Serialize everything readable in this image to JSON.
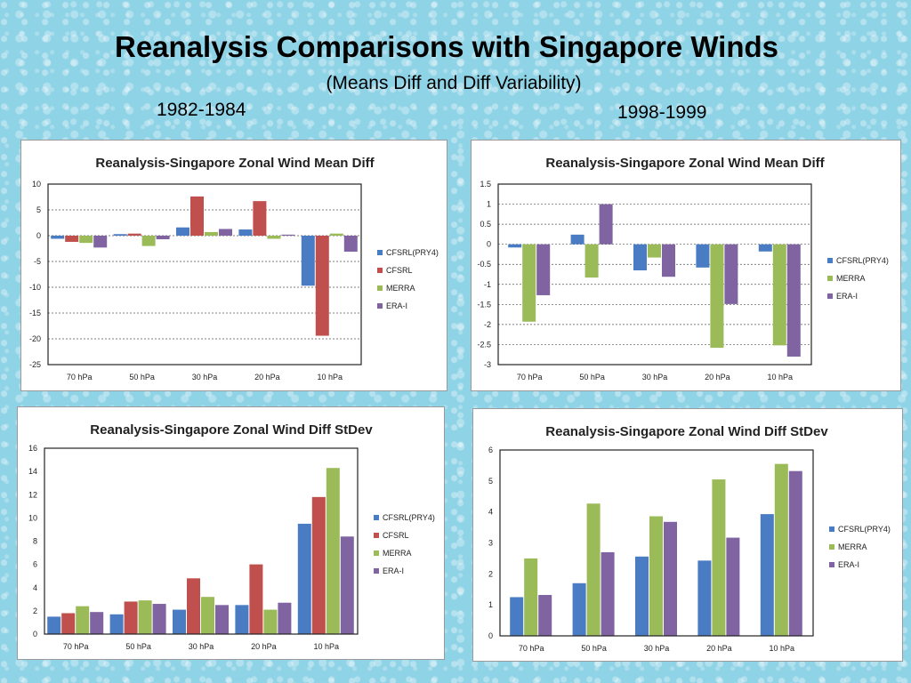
{
  "page": {
    "title": "Reanalysis Comparisons with Singapore Winds",
    "subtitle": "(Means Diff and Diff Variability)",
    "period_left": "1982-1984",
    "period_right": "1998-1999"
  },
  "colors": {
    "CFSRL(PRY4)": "#4a7cc4",
    "CFSRL": "#c0504d",
    "MERRA": "#9bbb59",
    "ERA-I": "#8064a2"
  },
  "chart_data": [
    {
      "type": "bar",
      "title": "Reanalysis-Singapore Zonal Wind Mean Diff",
      "categories": [
        "70 hPa",
        "50 hPa",
        "30 hPa",
        "20 hPa",
        "10 hPa"
      ],
      "ylim": [
        -25,
        10
      ],
      "yticks": [
        10,
        5,
        0,
        -5,
        -10,
        -15,
        -20,
        -25
      ],
      "grid": true,
      "legend_position": "right",
      "series": [
        {
          "name": "CFSRL(PRY4)",
          "values": [
            -0.6,
            0.3,
            1.6,
            1.2,
            -9.7
          ]
        },
        {
          "name": "CFSRL",
          "values": [
            -1.2,
            0.4,
            7.6,
            6.7,
            -19.4
          ]
        },
        {
          "name": "MERRA",
          "values": [
            -1.4,
            -2.0,
            0.7,
            -0.6,
            0.4
          ]
        },
        {
          "name": "ERA-I",
          "values": [
            -2.3,
            -0.7,
            1.3,
            0.2,
            -3.1
          ]
        }
      ]
    },
    {
      "type": "bar",
      "title": "Reanalysis-Singapore Zonal Wind Mean Diff",
      "categories": [
        "70 hPa",
        "50 hPa",
        "30 hPa",
        "20 hPa",
        "10 hPa"
      ],
      "ylim": [
        -3,
        1.5
      ],
      "yticks": [
        1.5,
        1,
        0.5,
        0,
        -0.5,
        -1,
        -1.5,
        -2,
        -2.5,
        -3
      ],
      "grid": true,
      "legend_position": "right",
      "series": [
        {
          "name": "CFSRL(PRY4)",
          "values": [
            -0.08,
            0.24,
            -0.65,
            -0.58,
            -0.18
          ]
        },
        {
          "name": "MERRA",
          "values": [
            -1.93,
            -0.83,
            -0.33,
            -2.58,
            -2.52
          ]
        },
        {
          "name": "ERA-I",
          "values": [
            -1.27,
            1.0,
            -0.81,
            -1.49,
            -2.8
          ]
        }
      ]
    },
    {
      "type": "bar",
      "title": "Reanalysis-Singapore Zonal Wind Diff StDev",
      "categories": [
        "70 hPa",
        "50 hPa",
        "30 hPa",
        "20 hPa",
        "10 hPa"
      ],
      "ylim": [
        0,
        16
      ],
      "yticks": [
        16,
        14,
        12,
        10,
        8,
        6,
        4,
        2,
        0
      ],
      "grid": false,
      "legend_position": "right",
      "series": [
        {
          "name": "CFSRL(PRY4)",
          "values": [
            1.5,
            1.7,
            2.1,
            2.5,
            9.5
          ]
        },
        {
          "name": "CFSRL",
          "values": [
            1.8,
            2.8,
            4.8,
            6.0,
            11.8
          ]
        },
        {
          "name": "MERRA",
          "values": [
            2.4,
            2.9,
            3.2,
            2.1,
            14.3
          ]
        },
        {
          "name": "ERA-I",
          "values": [
            1.9,
            2.6,
            2.5,
            2.7,
            8.4
          ]
        }
      ]
    },
    {
      "type": "bar",
      "title": "Reanalysis-Singapore Zonal Wind Diff StDev",
      "categories": [
        "70 hPa",
        "50 hPa",
        "30 hPa",
        "20 hPa",
        "10 hPa"
      ],
      "ylim": [
        0,
        6
      ],
      "yticks": [
        6,
        5,
        4,
        3,
        2,
        1,
        0
      ],
      "grid": false,
      "legend_position": "right",
      "series": [
        {
          "name": "CFSRL(PRY4)",
          "values": [
            1.25,
            1.7,
            2.56,
            2.43,
            3.93
          ]
        },
        {
          "name": "MERRA",
          "values": [
            2.5,
            4.27,
            3.86,
            5.05,
            5.55
          ]
        },
        {
          "name": "ERA-I",
          "values": [
            1.32,
            2.7,
            3.68,
            3.17,
            5.32
          ]
        }
      ]
    }
  ]
}
